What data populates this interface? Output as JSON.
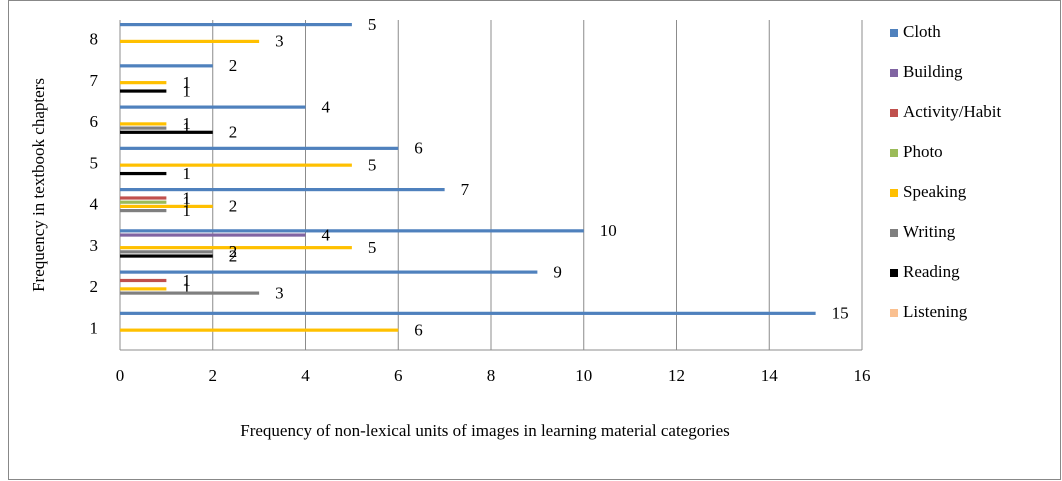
{
  "chart_data": {
    "type": "bar",
    "orientation": "horizontal",
    "xlabel": "Frequency of non-lexical units of images in learning material categories",
    "ylabel": "Frequency in textbook chapters",
    "categories": [
      "1",
      "2",
      "3",
      "4",
      "5",
      "6",
      "7",
      "8"
    ],
    "series": [
      {
        "name": "Cloth",
        "color": "#4f81bd",
        "values": [
          15,
          9,
          10,
          7,
          6,
          4,
          2,
          5
        ]
      },
      {
        "name": "Building",
        "color": "#8064a2",
        "values": [
          null,
          null,
          4,
          null,
          null,
          null,
          null,
          null
        ]
      },
      {
        "name": "Activity/Habit",
        "color": "#c0504d",
        "values": [
          null,
          1,
          null,
          1,
          null,
          null,
          null,
          null
        ]
      },
      {
        "name": "Photo",
        "color": "#9bbb59",
        "values": [
          null,
          null,
          null,
          1,
          null,
          null,
          null,
          null
        ]
      },
      {
        "name": "Speaking",
        "color": "#ffc000",
        "values": [
          6,
          1,
          5,
          2,
          5,
          1,
          1,
          3
        ]
      },
      {
        "name": "Writing",
        "color": "#7f7f7f",
        "values": [
          null,
          3,
          2,
          1,
          null,
          1,
          null,
          null
        ]
      },
      {
        "name": "Reading",
        "color": "#000000",
        "values": [
          null,
          null,
          2,
          null,
          1,
          2,
          1,
          null
        ]
      },
      {
        "name": "Listening",
        "color": "#fac090",
        "values": [
          null,
          null,
          null,
          null,
          null,
          null,
          null,
          null
        ]
      }
    ],
    "xlim": [
      0,
      16
    ],
    "xticks": [
      0,
      2,
      4,
      6,
      8,
      10,
      12,
      14,
      16
    ],
    "grid": true,
    "legend": "right"
  }
}
